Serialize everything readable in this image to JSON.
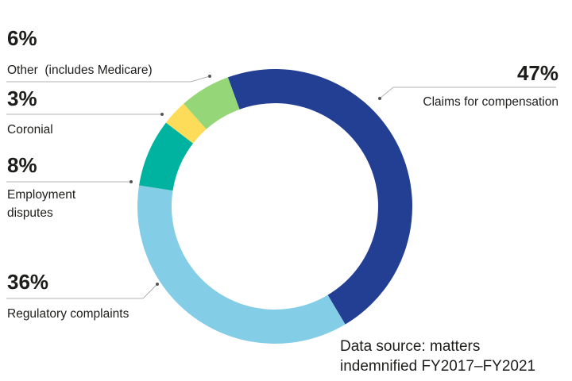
{
  "chart_data": {
    "type": "pie",
    "variant": "donut",
    "title": "",
    "categories": [
      "Claims for compensation",
      "Regulatory complaints",
      "Employment disputes",
      "Coronial",
      "Other (includes Medicare)"
    ],
    "values": [
      47,
      36,
      8,
      3,
      6
    ],
    "value_labels": [
      "47%",
      "36%",
      "8%",
      "3%",
      "6%"
    ],
    "colors": [
      "#233f93",
      "#84cde6",
      "#00b3a0",
      "#fddc5a",
      "#95d678"
    ],
    "source_note": [
      "Data source: matters",
      "indemnified FY2017–FY2021"
    ]
  },
  "labels": {
    "claims": {
      "pct": "47%",
      "text": "Claims for compensation"
    },
    "regulatory": {
      "pct": "36%",
      "text": "Regulatory complaints"
    },
    "employment": {
      "pct": "8%",
      "text_line1": "Employment",
      "text_line2": "disputes"
    },
    "coronial": {
      "pct": "3%",
      "text": "Coronial"
    },
    "other": {
      "pct": "6%",
      "text": "Other  (includes Medicare)"
    }
  }
}
